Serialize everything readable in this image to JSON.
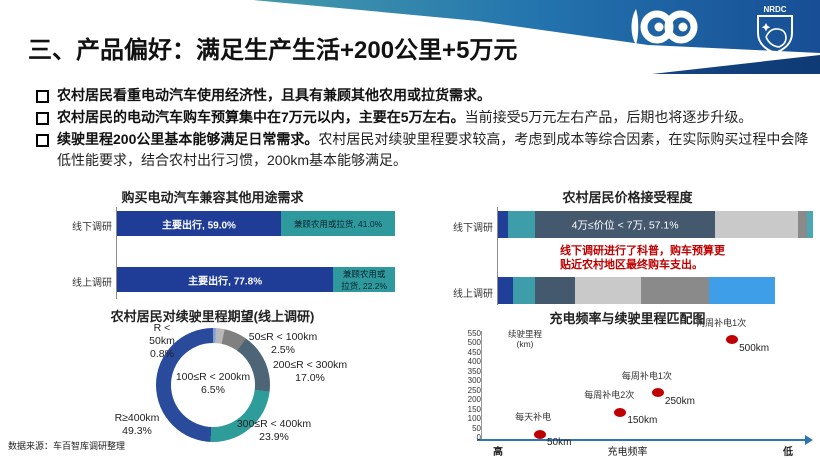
{
  "header": {
    "title": "三、产品偏好：满足生产生活+200公里+5万元",
    "logo_100_label": "100",
    "nrdc_label": "NRDC"
  },
  "bullets": [
    {
      "bold": "农村居民看重电动汽车使用经济性，且具有兼顾其他农用或拉货需求。",
      "normal": ""
    },
    {
      "bold": "农村居民的电动汽车购车预算集中在7万元以内，主要在5万左右。",
      "normal": "当前接受5万元左右产品，后期也将逐步升级。"
    },
    {
      "bold": "续驶里程200公里基本能够满足日常需求。",
      "normal": "农村居民对续驶里程要求较高，考虑到成本等综合因素，在实际购买过程中会降低性能要求，结合农村出行习惯，200km基本能够满足。"
    }
  ],
  "chart_data": [
    {
      "type": "bar",
      "stacked": true,
      "orientation": "horizontal",
      "title": "购买电动汽车兼容其他用途需求",
      "categories": [
        "线下调研",
        "线上调研"
      ],
      "series": [
        {
          "name": "主要出行",
          "color": "#1f3d96",
          "values": [
            59.0,
            77.8
          ]
        },
        {
          "name": "兼顾农用或拉货",
          "color": "#2f9a9d",
          "values": [
            41.0,
            22.2
          ]
        }
      ],
      "value_labels": [
        [
          "主要出行, 59.0%",
          "兼顾农用或拉货, 41.0%"
        ],
        [
          "主要出行, 77.8%",
          "兼顾农用或\n拉货, 22.2%"
        ]
      ]
    },
    {
      "type": "pie",
      "title": "农村居民对续驶里程期望(线上调研)",
      "slices": [
        {
          "label": "R < 50km",
          "value": 0.8,
          "color": "#7f9fd6",
          "label_lines": [
            "R <",
            "50km",
            "0.8%"
          ]
        },
        {
          "label": "50≤R < 100km",
          "value": 2.5,
          "color": "#b8b8b8",
          "label_lines": [
            "50≤R < 100km",
            "2.5%"
          ]
        },
        {
          "label": "100≤R < 200km",
          "value": 6.5,
          "color": "#808080",
          "label_lines": [
            "100≤R < 200km",
            "6.5%"
          ]
        },
        {
          "label": "200≤R < 300km",
          "value": 17.0,
          "color": "#4e6577",
          "label_lines": [
            "200≤R < 300km",
            "17.0%"
          ]
        },
        {
          "label": "300≤R < 400km",
          "value": 23.9,
          "color": "#2e9d99",
          "label_lines": [
            "300≤R < 400km",
            "23.9%"
          ]
        },
        {
          "label": "R≥400km",
          "value": 49.3,
          "color": "#2a4a9c",
          "label_lines": [
            "R≥400km",
            "49.3%"
          ]
        }
      ]
    },
    {
      "type": "bar",
      "stacked": true,
      "orientation": "horizontal",
      "title": "农村居民价格接受程度",
      "categories": [
        "线下调研",
        "线上调研"
      ],
      "bar_label": "4万≤价位 < 7万, 57.1%",
      "annotation": "线下调研进行了科普，购车预算更\n贴近农村地区最终购车支出。",
      "annotation_color": "#c00000",
      "rows": [
        {
          "segments": [
            {
              "v": 3.2,
              "c": "#203f99"
            },
            {
              "v": 8.6,
              "c": "#3d9da8"
            },
            {
              "v": 57.1,
              "c": "#44586e",
              "label": "4万≤价位 < 7万, 57.1%"
            },
            {
              "v": 26.5,
              "c": "#c9c9c9"
            },
            {
              "v": 2.7,
              "c": "#8a8a8a"
            },
            {
              "v": 1.9,
              "c": "#4aa8b5"
            }
          ]
        },
        {
          "segments": [
            {
              "v": 4.7,
              "c": "#203f99"
            },
            {
              "v": 7.2,
              "c": "#3d9da8"
            },
            {
              "v": 12.5,
              "c": "#44586e"
            },
            {
              "v": 20.9,
              "c": "#c9c9c9"
            },
            {
              "v": 21.8,
              "c": "#8a8a8a"
            },
            {
              "v": 20.9,
              "c": "#3f9ee8"
            }
          ]
        }
      ]
    },
    {
      "type": "scatter",
      "title": "充电频率与续驶里程匹配图",
      "ylabel": "续驶里程\n(km)",
      "xlabel": "充电频率",
      "x_left": "高",
      "x_right": "低",
      "ylim": [
        0,
        550
      ],
      "yticks": [
        0,
        50,
        100,
        150,
        200,
        250,
        300,
        350,
        400,
        450,
        500,
        550
      ],
      "point_color": "#c00000",
      "points": [
        {
          "name": "每天补电",
          "range": "50km",
          "x": 0.182,
          "y": 15
        },
        {
          "name": "每周补电2次",
          "range": "150km",
          "x": 0.43,
          "y": 130
        },
        {
          "name": "每周补电1次",
          "range": "250km",
          "x": 0.546,
          "y": 235
        },
        {
          "name": "两周补电1次",
          "range": "500km",
          "x": 0.775,
          "y": 515
        }
      ]
    }
  ],
  "footer": {
    "source": "数据来源：车百智库调研整理"
  }
}
